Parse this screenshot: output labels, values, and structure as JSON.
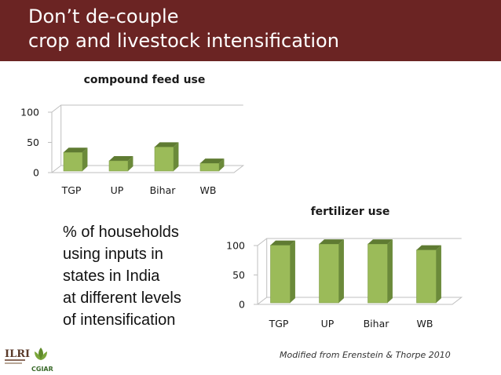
{
  "slide": {
    "title_line1": "Don’t de-couple",
    "title_line2": "crop and livestock intensification",
    "description": [
      "% of households",
      "using inputs in",
      "states in India",
      "at different levels",
      "of intensification"
    ],
    "source": "Modified from  Erenstein & Thorpe 2010",
    "logos": {
      "ilri": "ILRI",
      "cgiar": "CGIAR"
    }
  },
  "colors": {
    "header": "#6b2423",
    "bar_front": "#9bbb59",
    "bar_side": "#6b8a3a",
    "bar_top": "#5f7b32"
  },
  "chart_data": [
    {
      "type": "bar",
      "title": "compound feed use",
      "categories": [
        "TGP",
        "UP",
        "Bihar",
        "WB"
      ],
      "values": [
        31,
        17,
        40,
        13
      ],
      "ylim": [
        0,
        100
      ],
      "yticks": [
        "0",
        "50",
        "100"
      ],
      "grid": false,
      "legend": "none"
    },
    {
      "type": "bar",
      "title": "fertilizer use",
      "categories": [
        "TGP",
        "UP",
        "Bihar",
        "WB"
      ],
      "values": [
        98,
        100,
        100,
        90
      ],
      "ylim": [
        0,
        100
      ],
      "yticks": [
        "0",
        "50",
        "100"
      ],
      "grid": false,
      "legend": "none"
    }
  ]
}
